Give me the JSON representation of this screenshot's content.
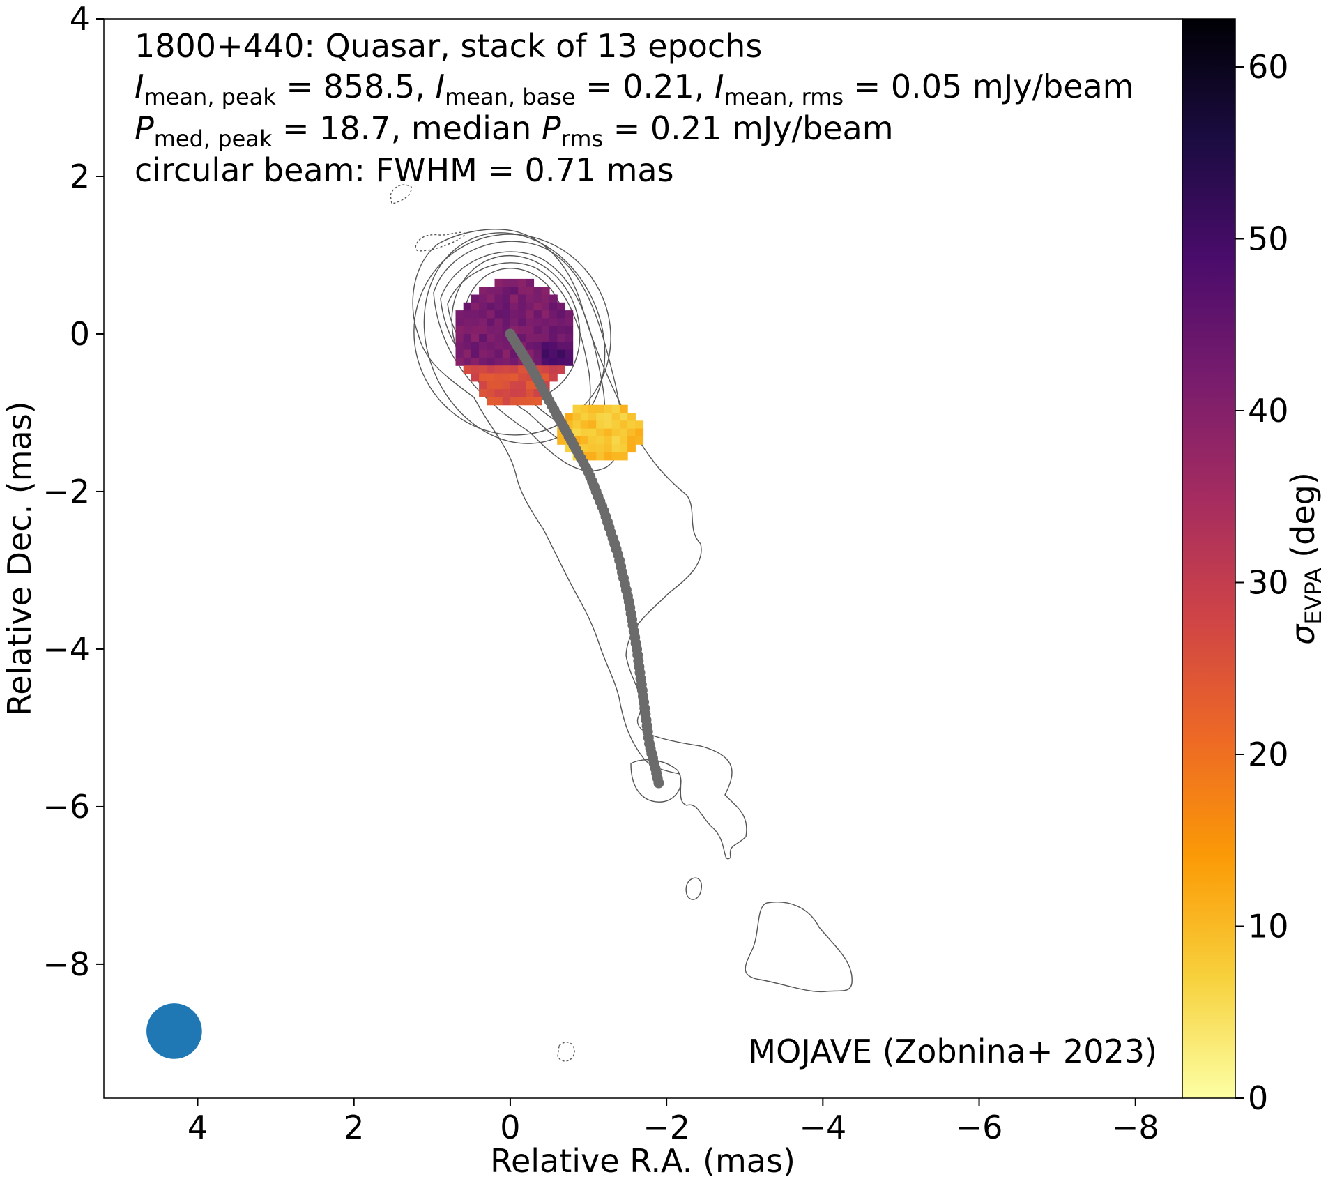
{
  "chart_data": {
    "type": "heatmap",
    "annotation": {
      "line1": "1800+440: Quasar, stack of 13 epochs",
      "line2": {
        "i1": "I",
        "i1_sub": "mean, peak",
        "v1": " = 858.5, ",
        "i2": "I",
        "i2_sub": "mean, base",
        "v2": " = 0.21, ",
        "i3": "I",
        "i3_sub": "mean, rms",
        "v3": " = 0.05 mJy/beam"
      },
      "line3": {
        "p1": "P",
        "p1_sub": "med, peak",
        "v1": " = 18.7, median ",
        "p2": "P",
        "p2_sub": "rms",
        "v2": " = 0.21 mJy/beam"
      },
      "line4": "circular beam: FWHM = 0.71 mas",
      "credit": "MOJAVE (Zobnina+ 2023)"
    },
    "xlabel": "Relative R.A. (mas)",
    "ylabel": "Relative Dec. (mas)",
    "xlim": [
      5.2,
      -8.6
    ],
    "ylim": [
      -9.7,
      4.0
    ],
    "xticks": [
      {
        "v": 4,
        "label": "4"
      },
      {
        "v": 2,
        "label": "2"
      },
      {
        "v": 0,
        "label": "0"
      },
      {
        "v": -2,
        "label": "−2"
      },
      {
        "v": -4,
        "label": "−4"
      },
      {
        "v": -6,
        "label": "−6"
      },
      {
        "v": -8,
        "label": "−8"
      }
    ],
    "yticks": [
      {
        "v": 4,
        "label": "4"
      },
      {
        "v": 2,
        "label": "2"
      },
      {
        "v": 0,
        "label": "0"
      },
      {
        "v": -2,
        "label": "−2"
      },
      {
        "v": -4,
        "label": "−4"
      },
      {
        "v": -6,
        "label": "−6"
      },
      {
        "v": -8,
        "label": "−8"
      }
    ],
    "colorbar": {
      "label_sym": "σ",
      "label_sub": "EVPA",
      "label_unit": " (deg)",
      "range": [
        0,
        62.8
      ],
      "colormap": "inferno_r",
      "stops": [
        "#fcffa4",
        "#f7d13d",
        "#fb9b06",
        "#ed6925",
        "#cf4446",
        "#a52c60",
        "#781c6d",
        "#4a0c6b",
        "#1b0c41",
        "#000004"
      ],
      "ticks": [
        {
          "v": 0,
          "label": "0"
        },
        {
          "v": 10,
          "label": "10"
        },
        {
          "v": 20,
          "label": "20"
        },
        {
          "v": 30,
          "label": "30"
        },
        {
          "v": 40,
          "label": "40"
        },
        {
          "v": 50,
          "label": "50"
        },
        {
          "v": 60,
          "label": "60"
        }
      ]
    },
    "ridgeline": [
      [
        0.0,
        0.0
      ],
      [
        -0.25,
        -0.4
      ],
      [
        -0.5,
        -0.85
      ],
      [
        -0.75,
        -1.3
      ],
      [
        -1.0,
        -1.75
      ],
      [
        -1.2,
        -2.25
      ],
      [
        -1.38,
        -2.8
      ],
      [
        -1.52,
        -3.4
      ],
      [
        -1.62,
        -4.0
      ],
      [
        -1.7,
        -4.6
      ],
      [
        -1.78,
        -5.2
      ],
      [
        -1.9,
        -5.7
      ]
    ],
    "evpa_regions": [
      {
        "name": "core",
        "cx": 0.0,
        "cy": 0.0,
        "rx": 0.78,
        "ry": 0.75,
        "sigma": 42
      },
      {
        "name": "core-south",
        "cx": 0.0,
        "cy": -0.65,
        "rx": 0.5,
        "ry": 0.22,
        "sigma": 26
      },
      {
        "name": "jet-knot",
        "cx": -1.1,
        "cy": -1.2,
        "rx": 0.55,
        "ry": 0.38,
        "sigma": 9
      }
    ],
    "beam": {
      "x": 4.3,
      "y": -8.85,
      "fwhm": 0.71,
      "color": "#1f77b4"
    },
    "grid": false,
    "legend": "none"
  }
}
